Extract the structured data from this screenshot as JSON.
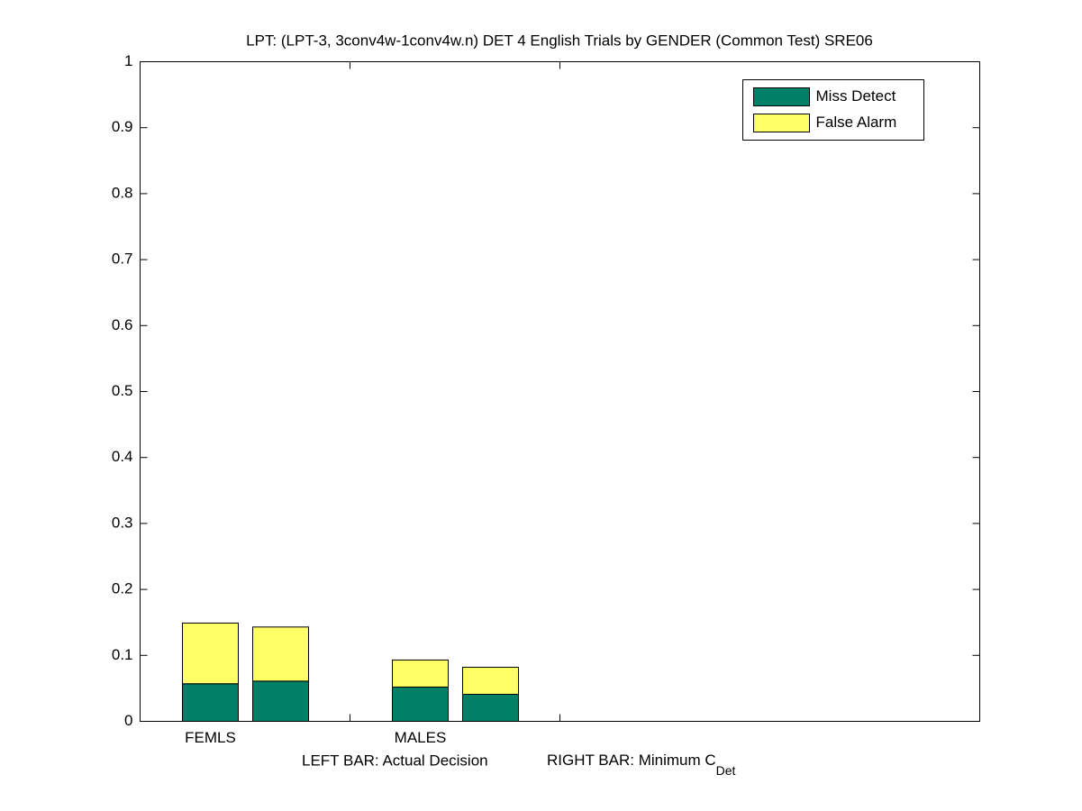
{
  "chart_data": {
    "type": "stacked-bar-pairs",
    "title": "LPT: (LPT-3, 3conv4w-1conv4w.n) DET 4 English Trials by GENDER (Common Test) SRE06",
    "categories": [
      "FEMLS",
      "MALES"
    ],
    "bar_labels": [
      "LEFT BAR: Actual Decision",
      "RIGHT BAR: Minimum C"
    ],
    "bar_label_subscript": "Det",
    "series": [
      {
        "name": "Miss Detect",
        "color": "#008066",
        "values": [
          [
            0.057,
            0.061
          ],
          [
            0.052,
            0.041
          ]
        ]
      },
      {
        "name": "False Alarm",
        "color": "#ffff66",
        "values": [
          [
            0.092,
            0.082
          ],
          [
            0.041,
            0.041
          ]
        ]
      }
    ],
    "ylim": [
      0,
      1
    ],
    "yticks": [
      0,
      0.1,
      0.2,
      0.3,
      0.4,
      0.5,
      0.6,
      0.7,
      0.8,
      0.9,
      1
    ],
    "legend": "top-right"
  }
}
